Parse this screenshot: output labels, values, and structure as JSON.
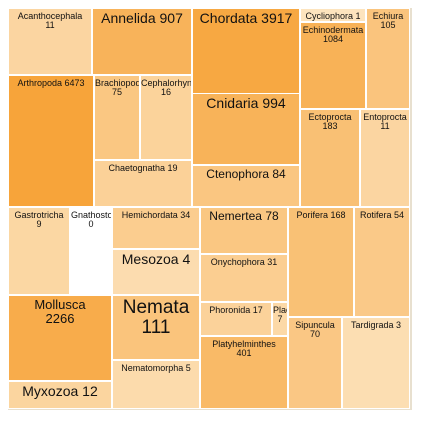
{
  "chart_data": {
    "type": "treemap",
    "value_label": "species count",
    "colors": {
      "low": "#fde9c9",
      "high": "#f7a43a"
    },
    "nodes": [
      {
        "name": "Acanthocephala",
        "value": 11
      },
      {
        "name": "Annelida",
        "value": 907
      },
      {
        "name": "Chordata",
        "value": 3917
      },
      {
        "name": "Cycliophora",
        "value": 1
      },
      {
        "name": "Echiura",
        "value": 105
      },
      {
        "name": "Echinodermata",
        "value": 1084
      },
      {
        "name": "Arthropoda",
        "value": 6473
      },
      {
        "name": "Brachiopoda",
        "value": 75
      },
      {
        "name": "Cephalorhyncha",
        "value": 16
      },
      {
        "name": "Cnidaria",
        "value": 994
      },
      {
        "name": "Ectoprocta",
        "value": 183
      },
      {
        "name": "Entoprocta",
        "value": 11
      },
      {
        "name": "Chaetognatha",
        "value": 19
      },
      {
        "name": "Ctenophora",
        "value": 84
      },
      {
        "name": "Gastrotricha",
        "value": 9
      },
      {
        "name": "Gnathostomulida",
        "value": 0
      },
      {
        "name": "Hemichordata",
        "value": 34
      },
      {
        "name": "Nemertea",
        "value": 78
      },
      {
        "name": "Porifera",
        "value": 168
      },
      {
        "name": "Rotifera",
        "value": 54
      },
      {
        "name": "Mesozoa",
        "value": 4
      },
      {
        "name": "Onychophora",
        "value": 31
      },
      {
        "name": "Mollusca",
        "value": 2266
      },
      {
        "name": "Nemata",
        "value": 111
      },
      {
        "name": "Phoronida",
        "value": 17
      },
      {
        "name": "Placozoa",
        "value": 7
      },
      {
        "name": "Sipuncula",
        "value": 70
      },
      {
        "name": "Tardigrada",
        "value": 3
      },
      {
        "name": "Platyhelminthes",
        "value": 401
      },
      {
        "name": "Nematomorpha",
        "value": 5
      },
      {
        "name": "Myxozoa",
        "value": 12
      }
    ]
  }
}
